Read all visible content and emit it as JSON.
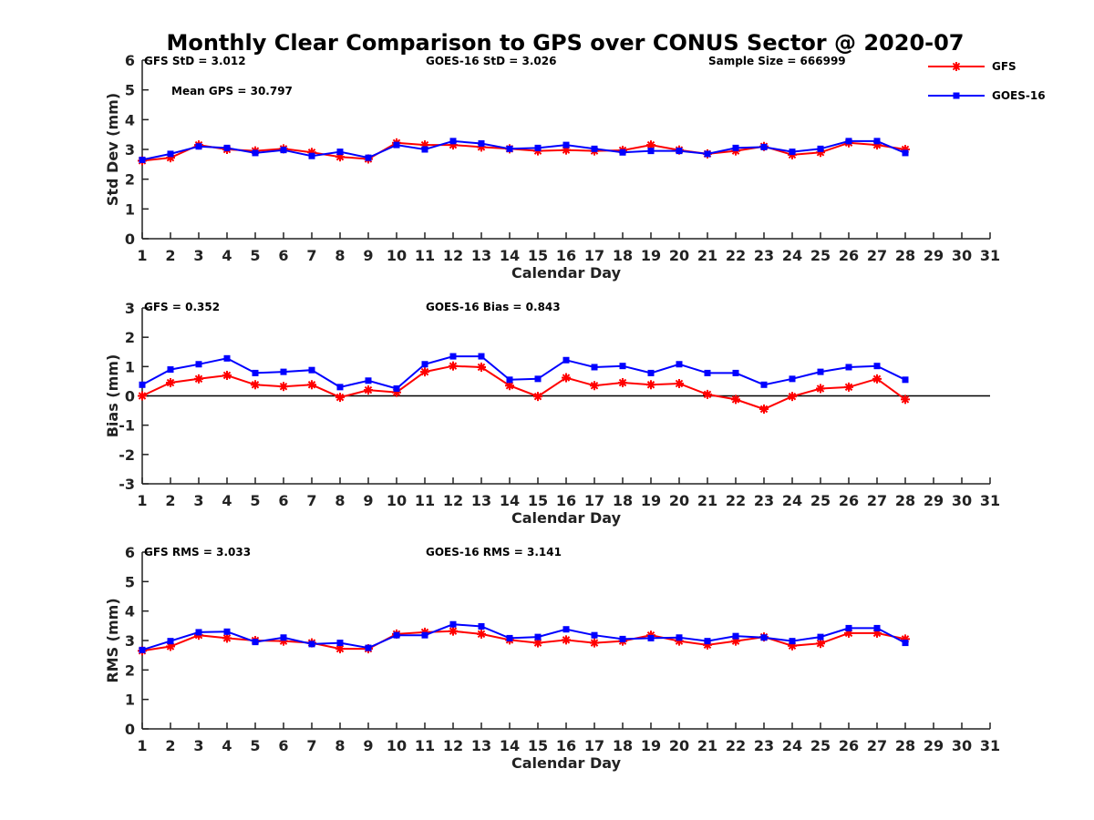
{
  "chart_data": {
    "title": "Monthly Clear Comparison to GPS over CONUS Sector @ 2020-07",
    "legend": {
      "position": "top-right",
      "entries": [
        {
          "name": "GFS",
          "color": "#ff0000",
          "marker": "asterisk"
        },
        {
          "name": "GOES-16",
          "color": "#0000ff",
          "marker": "square"
        }
      ]
    },
    "subplots": [
      {
        "type": "line",
        "id": "std",
        "ylabel": "Std Dev (mm)",
        "xlabel": "Calendar Day",
        "xlim": [
          1,
          31
        ],
        "ylim": [
          0,
          6
        ],
        "yticks": [
          0,
          1,
          2,
          3,
          4,
          5,
          6
        ],
        "annotations": [
          "GFS StD = 3.012",
          "GOES-16 StD = 3.026",
          "Sample Size = 666999",
          "Mean GPS = 30.797"
        ],
        "series": [
          {
            "name": "GFS",
            "color": "#ff0000",
            "x": [
              1,
              2,
              3,
              4,
              5,
              6,
              7,
              8,
              9,
              10,
              11,
              12,
              13,
              14,
              15,
              16,
              17,
              18,
              19,
              20,
              21,
              22,
              23,
              24,
              25,
              26,
              27,
              28
            ],
            "values": [
              2.62,
              2.72,
              3.15,
              3.0,
              2.95,
              3.02,
              2.9,
              2.75,
              2.68,
              3.22,
              3.15,
              3.15,
              3.08,
              3.02,
              2.95,
              2.98,
              2.95,
              2.97,
              3.15,
              2.98,
              2.85,
              2.95,
              3.1,
              2.82,
              2.9,
              3.22,
              3.15,
              3.0
            ]
          },
          {
            "name": "GOES-16",
            "color": "#0000ff",
            "x": [
              1,
              2,
              3,
              4,
              5,
              6,
              7,
              8,
              9,
              10,
              11,
              12,
              13,
              14,
              15,
              16,
              17,
              18,
              19,
              20,
              21,
              22,
              23,
              24,
              25,
              26,
              27,
              28
            ],
            "values": [
              2.65,
              2.85,
              3.1,
              3.05,
              2.88,
              2.98,
              2.78,
              2.92,
              2.72,
              3.15,
              3.0,
              3.28,
              3.2,
              3.02,
              3.05,
              3.15,
              3.02,
              2.9,
              2.95,
              2.95,
              2.85,
              3.05,
              3.08,
              2.92,
              3.02,
              3.28,
              3.28,
              2.88
            ]
          }
        ]
      },
      {
        "type": "line",
        "id": "bias",
        "ylabel": "Bias (mm)",
        "xlabel": "Calendar Day",
        "xlim": [
          1,
          31
        ],
        "ylim": [
          -3,
          3
        ],
        "yticks": [
          -3,
          -2,
          -1,
          0,
          1,
          2,
          3
        ],
        "zero_line": true,
        "annotations": [
          "GFS = 0.352",
          "GOES-16 Bias = 0.843"
        ],
        "series": [
          {
            "name": "GFS",
            "color": "#ff0000",
            "x": [
              1,
              2,
              3,
              4,
              5,
              6,
              7,
              8,
              9,
              10,
              11,
              12,
              13,
              14,
              15,
              16,
              17,
              18,
              19,
              20,
              21,
              22,
              23,
              24,
              25,
              26,
              27,
              28
            ],
            "values": [
              0.0,
              0.45,
              0.58,
              0.7,
              0.38,
              0.32,
              0.38,
              -0.05,
              0.2,
              0.12,
              0.82,
              1.02,
              0.98,
              0.35,
              -0.02,
              0.62,
              0.35,
              0.45,
              0.38,
              0.42,
              0.05,
              -0.12,
              -0.45,
              -0.02,
              0.25,
              0.3,
              0.58,
              -0.12
            ]
          },
          {
            "name": "GOES-16",
            "color": "#0000ff",
            "x": [
              1,
              2,
              3,
              4,
              5,
              6,
              7,
              8,
              9,
              10,
              11,
              12,
              13,
              14,
              15,
              16,
              17,
              18,
              19,
              20,
              21,
              22,
              23,
              24,
              25,
              26,
              27,
              28
            ],
            "values": [
              0.38,
              0.9,
              1.08,
              1.28,
              0.78,
              0.82,
              0.88,
              0.3,
              0.52,
              0.25,
              1.08,
              1.35,
              1.35,
              0.55,
              0.58,
              1.22,
              0.98,
              1.02,
              0.78,
              1.08,
              0.78,
              0.78,
              0.38,
              0.58,
              0.82,
              0.98,
              1.02,
              0.55
            ]
          }
        ]
      },
      {
        "type": "line",
        "id": "rms",
        "ylabel": "RMS (mm)",
        "xlabel": "Calendar Day",
        "xlim": [
          1,
          31
        ],
        "ylim": [
          0,
          6
        ],
        "yticks": [
          0,
          1,
          2,
          3,
          4,
          5,
          6
        ],
        "annotations": [
          "GFS RMS = 3.033",
          "GOES-16 RMS = 3.141"
        ],
        "series": [
          {
            "name": "GFS",
            "color": "#ff0000",
            "x": [
              1,
              2,
              3,
              4,
              5,
              6,
              7,
              8,
              9,
              10,
              11,
              12,
              13,
              14,
              15,
              16,
              17,
              18,
              19,
              20,
              21,
              22,
              23,
              24,
              25,
              26,
              27,
              28
            ],
            "values": [
              2.65,
              2.8,
              3.18,
              3.08,
              3.0,
              2.98,
              2.92,
              2.72,
              2.72,
              3.22,
              3.28,
              3.32,
              3.22,
              3.02,
              2.92,
              3.02,
              2.92,
              2.98,
              3.18,
              2.98,
              2.85,
              2.98,
              3.12,
              2.82,
              2.9,
              3.25,
              3.25,
              3.05
            ]
          },
          {
            "name": "GOES-16",
            "color": "#0000ff",
            "x": [
              1,
              2,
              3,
              4,
              5,
              6,
              7,
              8,
              9,
              10,
              11,
              12,
              13,
              14,
              15,
              16,
              17,
              18,
              19,
              20,
              21,
              22,
              23,
              24,
              25,
              26,
              27,
              28
            ],
            "values": [
              2.68,
              2.98,
              3.28,
              3.3,
              2.95,
              3.1,
              2.88,
              2.92,
              2.75,
              3.18,
              3.18,
              3.55,
              3.48,
              3.08,
              3.12,
              3.38,
              3.18,
              3.05,
              3.08,
              3.1,
              2.98,
              3.15,
              3.1,
              2.98,
              3.12,
              3.42,
              3.42,
              2.92
            ]
          }
        ]
      }
    ]
  }
}
